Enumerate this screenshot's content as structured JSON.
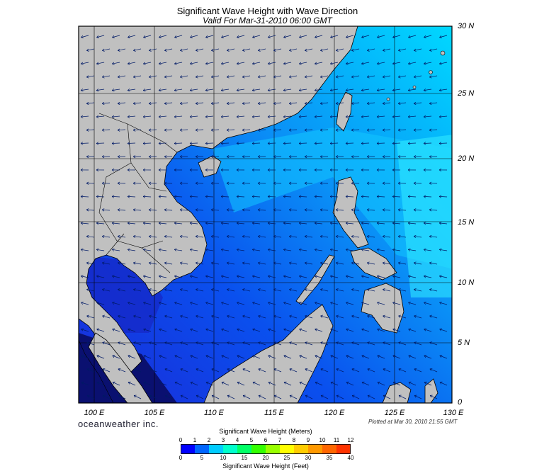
{
  "header": {
    "title": "Significant Wave Height with Wave Direction",
    "subtitle": "Valid For Mar-31-2010 06:00 GMT"
  },
  "axes": {
    "lat_labels": [
      "30 N",
      "25 N",
      "20 N",
      "15 N",
      "10 N",
      "5 N",
      "0"
    ],
    "lon_labels": [
      "100 E",
      "105 E",
      "110 E",
      "115 E",
      "120 E",
      "125 E",
      "130 E"
    ],
    "lat_range": [
      0,
      30
    ],
    "lon_range": [
      99,
      130
    ]
  },
  "footer": {
    "brand": "oceanweather inc.",
    "plotted": "Plotted at Mar 30, 2010 21:55 GMT"
  },
  "legend": {
    "meters_title": "Significant Wave Height (Meters)",
    "feet_title": "Significant Wave Height (Feet)",
    "meters_ticks": [
      "0",
      "1",
      "2",
      "3",
      "4",
      "5",
      "6",
      "7",
      "8",
      "9",
      "10",
      "11",
      "12"
    ],
    "feet_ticks": [
      "0",
      "5",
      "10",
      "15",
      "20",
      "25",
      "30",
      "35",
      "40"
    ],
    "colors": [
      "#0000ff",
      "#0066ff",
      "#00ccff",
      "#00ffcc",
      "#00ff66",
      "#33ff00",
      "#99ff00",
      "#ffff00",
      "#ffcc00",
      "#ff9900",
      "#ff6600",
      "#ff3300"
    ]
  },
  "colors": {
    "land": "#c0c0c0",
    "sea_low": "#1a2fe0",
    "sea_mid": "#0a6cf0",
    "sea_high": "#00d8ff"
  }
}
